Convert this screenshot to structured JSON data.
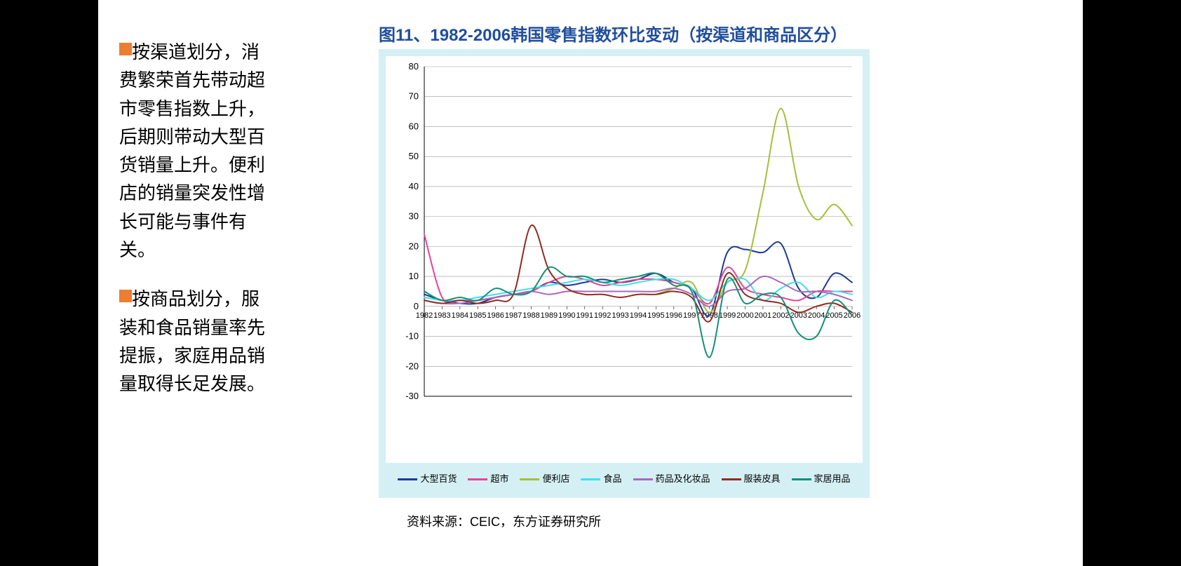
{
  "sidebar": {
    "bullet_color": "#ed7d31",
    "blocks": [
      "按渠道划分，消费繁荣首先带动超市零售指数上升，后期则带动大型百货销量上升。便利店的销量突发性增长可能与事件有关。",
      "按商品划分，服装和食品销量率先提振，家庭用品销量取得长足发展。"
    ]
  },
  "chart": {
    "title": "图11、1982-2006韩国零售指数环比变动（按渠道和商品区分）",
    "title_color": "#1f4e9c",
    "background_color": "#d4f0f5",
    "plot_bg": "#ffffff",
    "grid_color": "#999999",
    "line_width": 2,
    "ylim": [
      -30,
      80
    ],
    "ytick_step": 10,
    "xlabels": [
      "1982",
      "1983",
      "1984",
      "1985",
      "1986",
      "1987",
      "1988",
      "1989",
      "1990",
      "1991",
      "1992",
      "1993",
      "1994",
      "1995",
      "1996",
      "1997",
      "1998",
      "1999",
      "2000",
      "2001",
      "2002",
      "2003",
      "2004",
      "2005",
      "2006"
    ],
    "series": [
      {
        "name": "大型百货",
        "color": "#1f3a93",
        "values": [
          4,
          2,
          1,
          1,
          3,
          4,
          5,
          8,
          7,
          8,
          9,
          8,
          9,
          11,
          8,
          6,
          -3,
          18,
          19,
          18,
          21,
          6,
          3,
          11,
          8
        ]
      },
      {
        "name": "超市",
        "color": "#e84393",
        "values": [
          24,
          3,
          2,
          2,
          3,
          4,
          5,
          8,
          10,
          9,
          7,
          8,
          9,
          9,
          8,
          6,
          1,
          13,
          6,
          4,
          3,
          2,
          5,
          5,
          5
        ]
      },
      {
        "name": "便利店",
        "color": "#a2c037",
        "values": [
          null,
          null,
          null,
          null,
          null,
          null,
          null,
          null,
          null,
          null,
          null,
          null,
          null,
          4,
          6,
          8,
          -2,
          8,
          12,
          38,
          66,
          40,
          29,
          34,
          27
        ]
      },
      {
        "name": "食品",
        "color": "#3ee0e8",
        "values": [
          3,
          2,
          2,
          3,
          4,
          5,
          6,
          7,
          8,
          9,
          8,
          7,
          8,
          9,
          9,
          6,
          2,
          8,
          9,
          2,
          6,
          8,
          3,
          5,
          4
        ]
      },
      {
        "name": "药品及化妆品",
        "color": "#a569bd",
        "values": [
          2,
          1,
          1,
          2,
          3,
          4,
          5,
          4,
          5,
          5,
          5,
          5,
          5,
          5,
          6,
          4,
          0,
          5,
          6,
          10,
          8,
          5,
          5,
          4,
          2
        ]
      },
      {
        "name": "服装皮具",
        "color": "#922b21",
        "values": [
          2,
          1,
          2,
          1,
          2,
          4,
          27,
          12,
          6,
          4,
          4,
          3,
          4,
          4,
          5,
          3,
          -5,
          11,
          4,
          2,
          1,
          -2,
          0,
          1,
          -2
        ]
      },
      {
        "name": "家居用品",
        "color": "#148f77",
        "values": [
          5,
          2,
          3,
          2,
          6,
          4,
          5,
          13,
          10,
          10,
          8,
          9,
          10,
          11,
          7,
          5,
          -17,
          9,
          1,
          4,
          3,
          -9,
          -10,
          2,
          -3
        ]
      }
    ]
  },
  "source": "资料来源：CEIC，东方证券研究所"
}
